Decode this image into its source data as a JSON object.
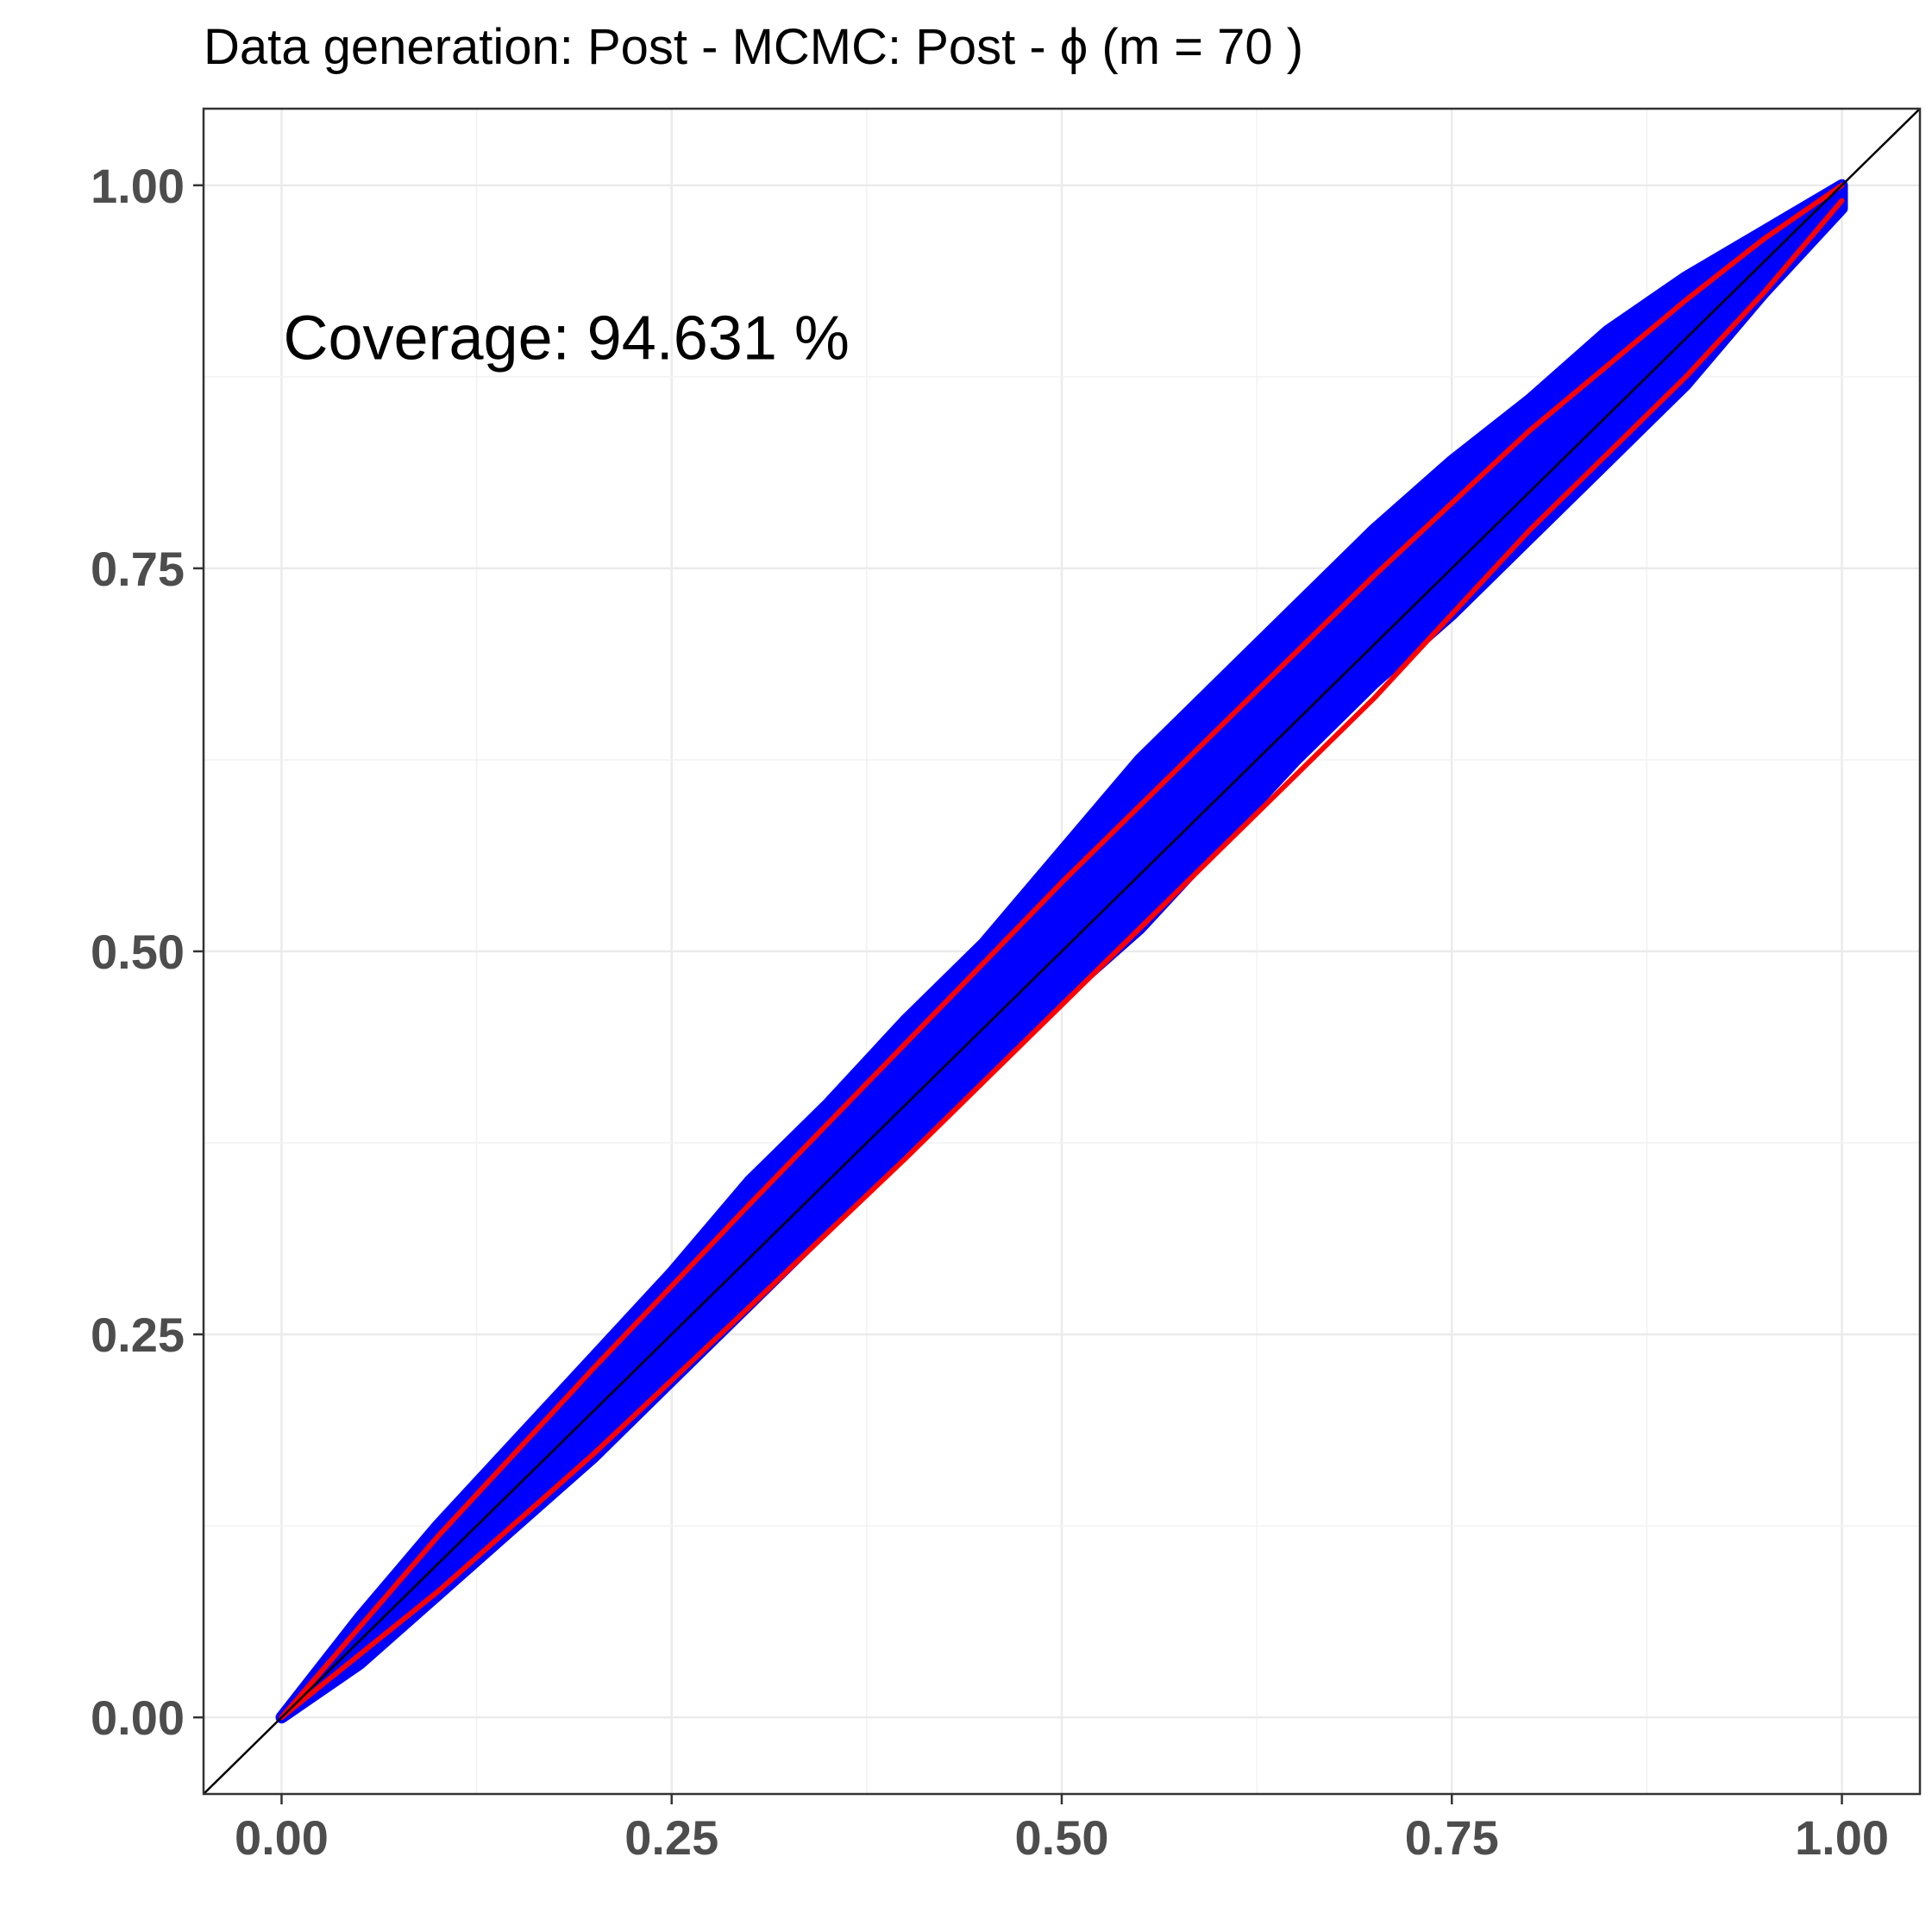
{
  "chart_data": {
    "type": "line",
    "title": "Data generation:  Post - MCMC:  Post  -  ϕ  (m =  70 )",
    "xlabel": "",
    "ylabel": "",
    "xlim": [
      -0.05,
      1.05
    ],
    "ylim": [
      -0.05,
      1.05
    ],
    "x_ticks": [
      0.0,
      0.25,
      0.5,
      0.75,
      1.0
    ],
    "y_ticks": [
      0.0,
      0.25,
      0.5,
      0.75,
      1.0
    ],
    "x_tick_labels": [
      "0.00",
      "0.25",
      "0.50",
      "0.75",
      "1.00"
    ],
    "y_tick_labels": [
      "0.00",
      "0.25",
      "0.50",
      "0.75",
      "1.00"
    ],
    "grid": true,
    "annotation": {
      "text": "Coverage:  94.631 %",
      "x": 0.0,
      "y": 0.9
    },
    "reference_line": {
      "x": [
        -0.05,
        1.05
      ],
      "y": [
        -0.05,
        1.05
      ],
      "color": "#000000"
    },
    "band": {
      "color": "#0000ff",
      "x": [
        0.0,
        0.05,
        0.1,
        0.15,
        0.2,
        0.25,
        0.3,
        0.35,
        0.4,
        0.45,
        0.5,
        0.55,
        0.6,
        0.65,
        0.7,
        0.75,
        0.8,
        0.85,
        0.9,
        0.95,
        1.0
      ],
      "upper": [
        0.0,
        0.065,
        0.125,
        0.18,
        0.235,
        0.29,
        0.35,
        0.4,
        0.455,
        0.505,
        0.565,
        0.625,
        0.675,
        0.725,
        0.775,
        0.82,
        0.86,
        0.905,
        0.94,
        0.97,
        1.0
      ],
      "lower": [
        0.0,
        0.035,
        0.08,
        0.125,
        0.17,
        0.22,
        0.27,
        0.32,
        0.37,
        0.42,
        0.47,
        0.515,
        0.57,
        0.625,
        0.675,
        0.72,
        0.77,
        0.82,
        0.87,
        0.93,
        0.985
      ]
    },
    "series": [
      {
        "color": "#ff0000",
        "x": [
          0.0,
          0.1,
          0.2,
          0.3,
          0.4,
          0.5,
          0.6,
          0.7,
          0.8,
          0.9,
          0.95,
          1.0
        ],
        "y": [
          0.0,
          0.118,
          0.228,
          0.335,
          0.44,
          0.545,
          0.645,
          0.745,
          0.84,
          0.925,
          0.965,
          1.0
        ]
      },
      {
        "color": "#ff0000",
        "x": [
          0.0,
          0.1,
          0.2,
          0.3,
          0.4,
          0.5,
          0.6,
          0.7,
          0.8,
          0.9,
          0.95,
          1.0
        ],
        "y": [
          0.0,
          0.082,
          0.172,
          0.268,
          0.365,
          0.465,
          0.565,
          0.665,
          0.775,
          0.875,
          0.93,
          0.99
        ]
      }
    ]
  }
}
